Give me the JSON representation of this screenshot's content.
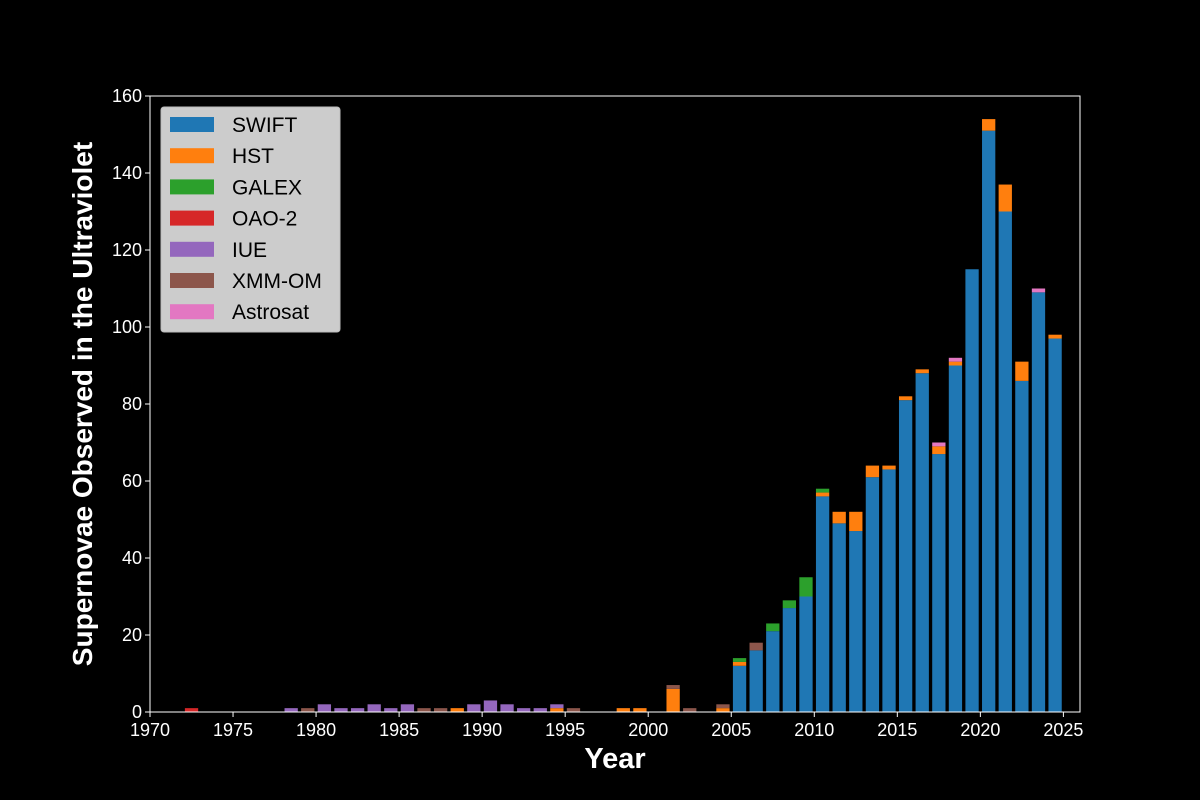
{
  "chart_data": {
    "type": "bar",
    "stacked": true,
    "xlabel": "Year",
    "ylabel": "Supernovae Observed in the Ultraviolet",
    "xlim": [
      1970,
      2026
    ],
    "ylim": [
      0,
      160
    ],
    "x_ticks": [
      "1970",
      "1975",
      "1980",
      "1985",
      "1990",
      "1995",
      "2000",
      "2005",
      "2010",
      "2015",
      "2020",
      "2025"
    ],
    "y_ticks": [
      "0",
      "20",
      "40",
      "60",
      "80",
      "100",
      "120",
      "140",
      "160"
    ],
    "grid": false,
    "legend_position": "top-left",
    "series": [
      {
        "name": "SWIFT",
        "color": "#1f77b4",
        "points": [
          [
            2005,
            12
          ],
          [
            2006,
            16
          ],
          [
            2007,
            21
          ],
          [
            2008,
            27
          ],
          [
            2009,
            30
          ],
          [
            2010,
            56
          ],
          [
            2011,
            49
          ],
          [
            2012,
            47
          ],
          [
            2013,
            61
          ],
          [
            2014,
            63
          ],
          [
            2015,
            81
          ],
          [
            2016,
            88
          ],
          [
            2017,
            67
          ],
          [
            2018,
            90
          ],
          [
            2019,
            115
          ],
          [
            2020,
            151
          ],
          [
            2021,
            130
          ],
          [
            2022,
            86
          ],
          [
            2023,
            109
          ],
          [
            2024,
            97
          ]
        ]
      },
      {
        "name": "HST",
        "color": "#ff7f0e",
        "points": [
          [
            1988,
            1
          ],
          [
            1994,
            1
          ],
          [
            1998,
            1
          ],
          [
            1999,
            1
          ],
          [
            2001,
            6
          ],
          [
            2004,
            1
          ],
          [
            2005,
            1
          ],
          [
            2010,
            1
          ],
          [
            2011,
            3
          ],
          [
            2012,
            5
          ],
          [
            2013,
            3
          ],
          [
            2014,
            1
          ],
          [
            2015,
            1
          ],
          [
            2016,
            1
          ],
          [
            2017,
            2
          ],
          [
            2018,
            1
          ],
          [
            2020,
            3
          ],
          [
            2021,
            7
          ],
          [
            2022,
            5
          ],
          [
            2024,
            1
          ]
        ]
      },
      {
        "name": "GALEX",
        "color": "#2ca02c",
        "points": [
          [
            2005,
            1
          ],
          [
            2007,
            2
          ],
          [
            2008,
            2
          ],
          [
            2009,
            5
          ],
          [
            2010,
            1
          ]
        ]
      },
      {
        "name": "OAO-2",
        "color": "#d62728",
        "points": [
          [
            1972,
            1
          ]
        ]
      },
      {
        "name": "IUE",
        "color": "#9467bd",
        "points": [
          [
            1978,
            1
          ],
          [
            1980,
            2
          ],
          [
            1981,
            1
          ],
          [
            1982,
            1
          ],
          [
            1983,
            2
          ],
          [
            1984,
            1
          ],
          [
            1985,
            2
          ],
          [
            1989,
            2
          ],
          [
            1990,
            3
          ],
          [
            1991,
            2
          ],
          [
            1992,
            1
          ],
          [
            1993,
            1
          ],
          [
            1994,
            1
          ]
        ]
      },
      {
        "name": "XMM-OM",
        "color": "#8c564b",
        "points": [
          [
            1979,
            1
          ],
          [
            1986,
            1
          ],
          [
            1987,
            1
          ],
          [
            1995,
            1
          ],
          [
            2001,
            1
          ],
          [
            2002,
            1
          ],
          [
            2004,
            1
          ],
          [
            2006,
            2
          ]
        ]
      },
      {
        "name": "Astrosat",
        "color": "#e377c2",
        "points": [
          [
            2017,
            1
          ],
          [
            2018,
            1
          ],
          [
            2023,
            1
          ]
        ]
      }
    ]
  }
}
